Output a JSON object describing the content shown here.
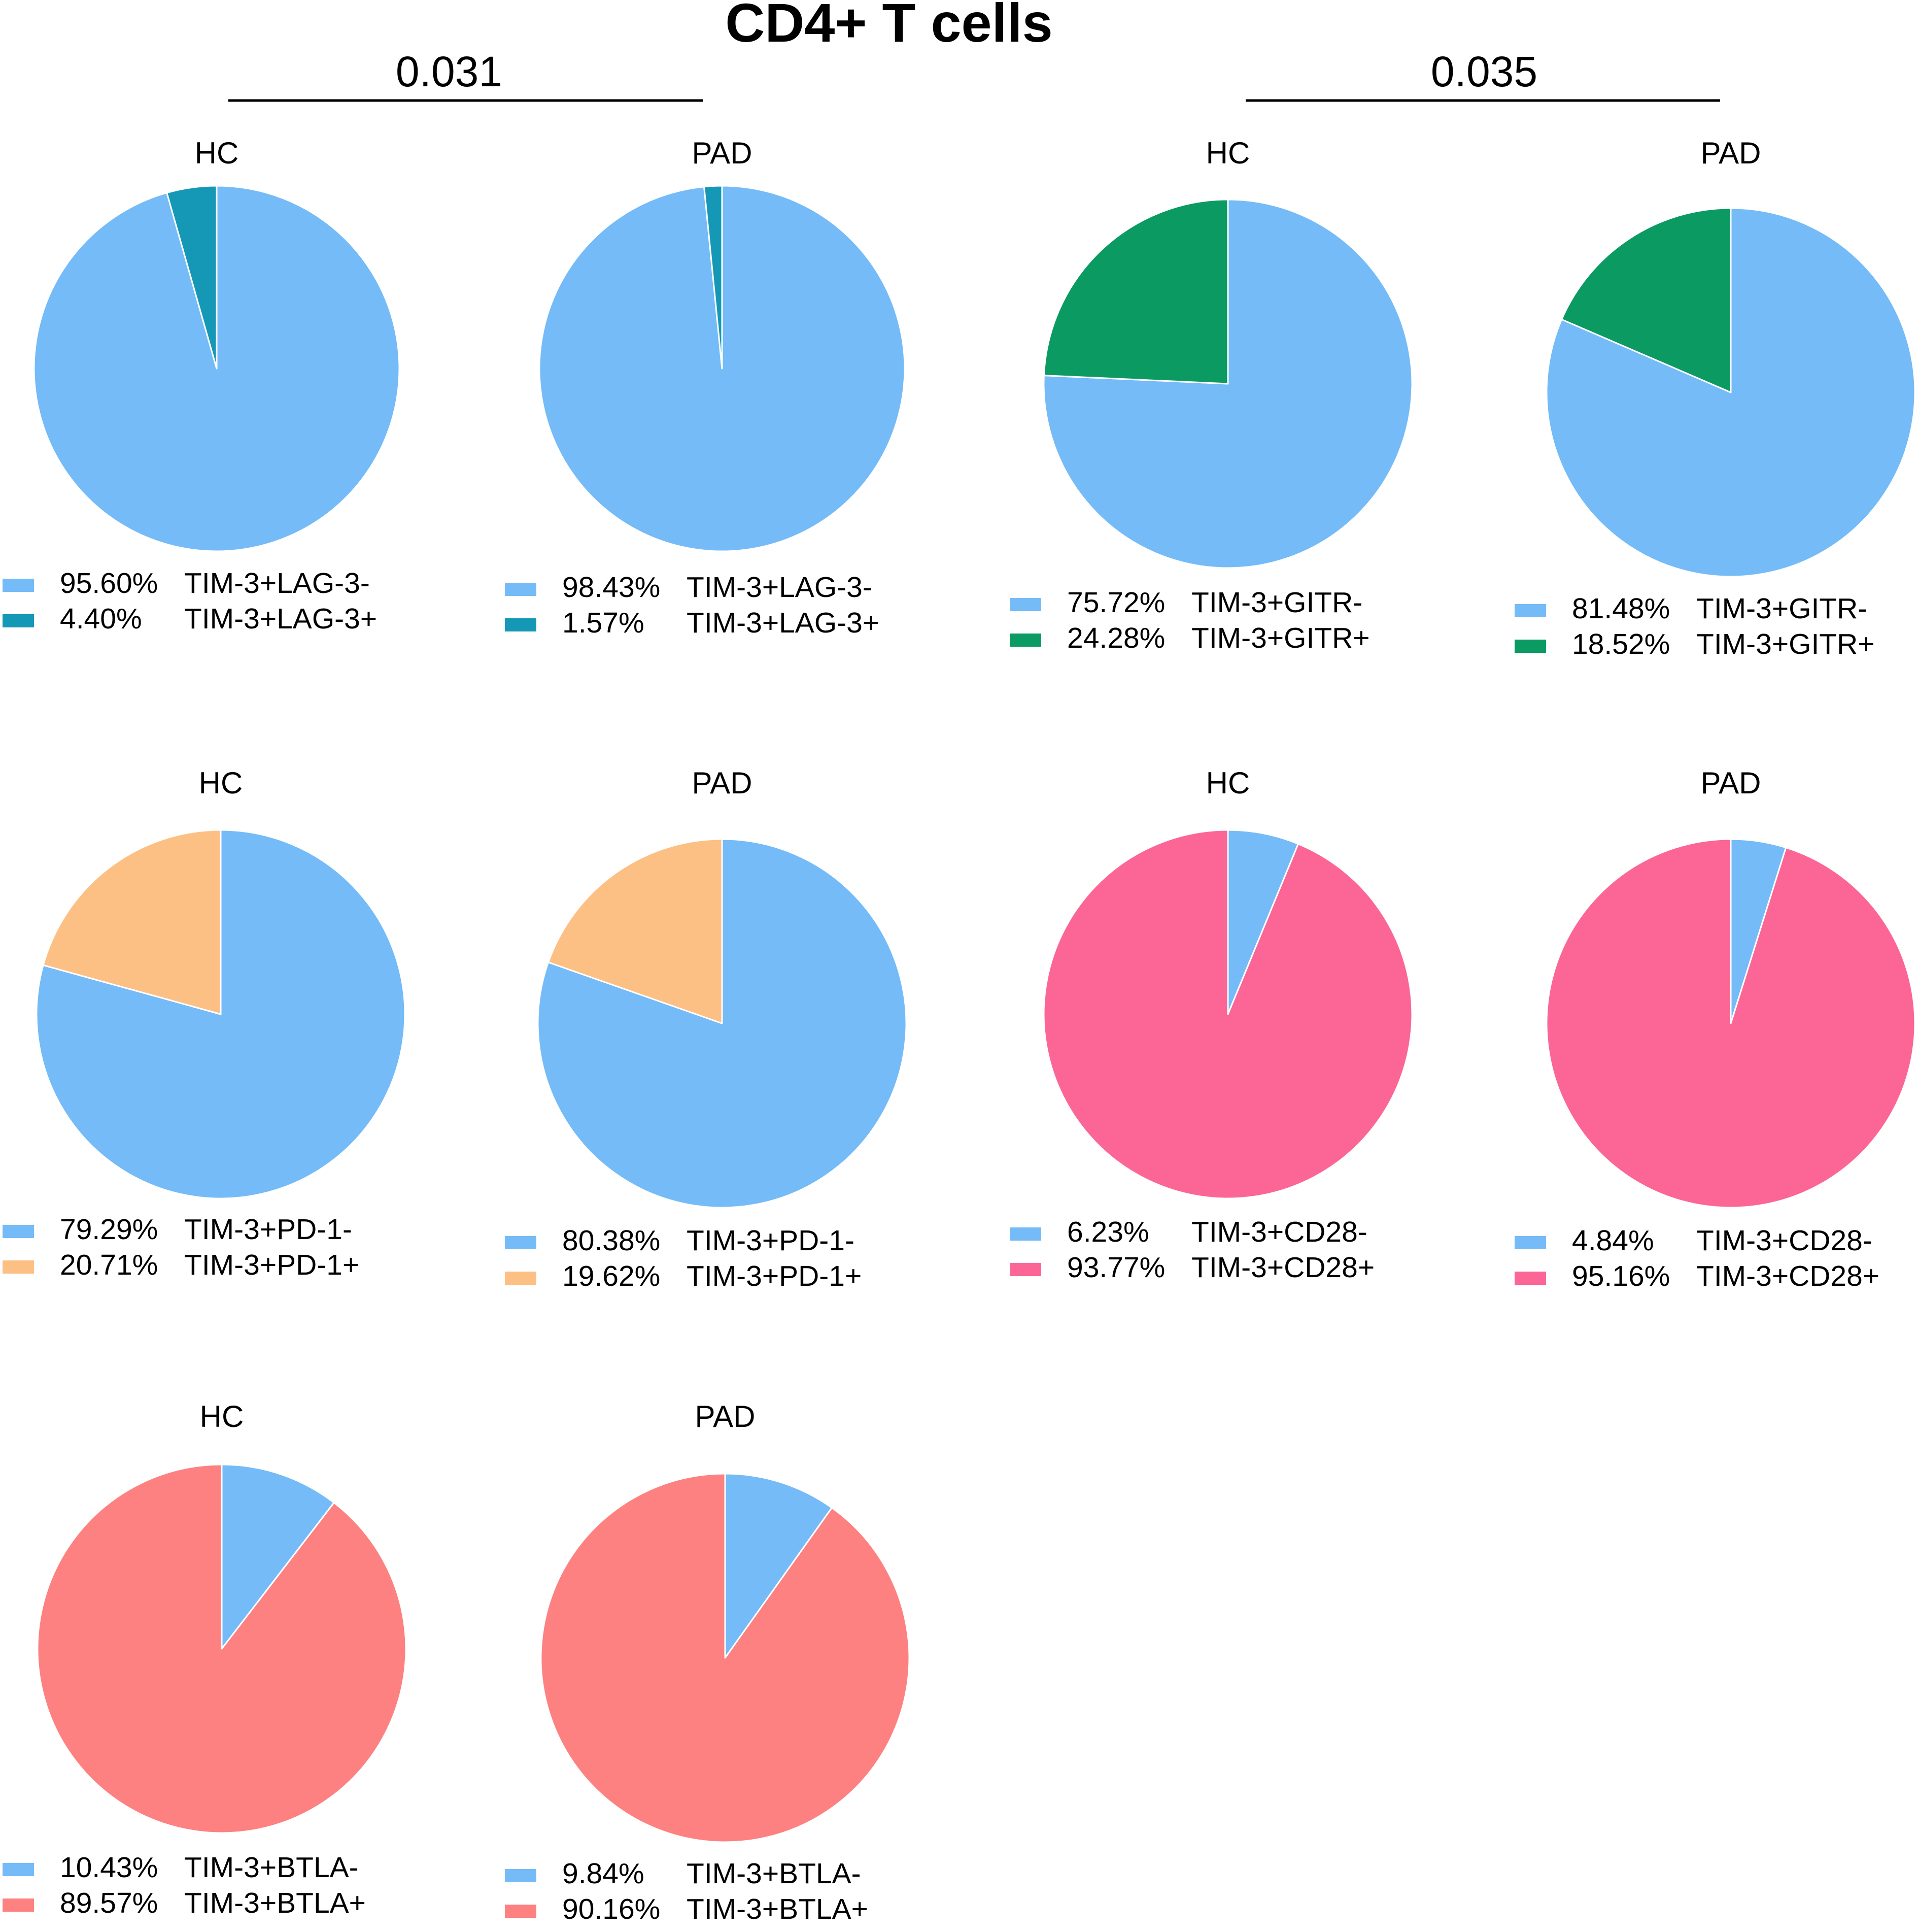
{
  "figure": {
    "title": "CD4+ T cells",
    "comparisons": [
      {
        "label": "0.031",
        "pair": "TIM-3+LAG-3"
      },
      {
        "label": "0.035",
        "pair": "TIM-3+GITR"
      }
    ]
  },
  "colors": {
    "negative": "#74BBF7",
    "lag3_pos": "#1598B5",
    "gitr_pos": "#0C9A63",
    "pd1_pos": "#FDC084",
    "cd28_pos": "#FB6696",
    "btla_pos": "#FD8181",
    "slice_border": "#FFFFFF"
  },
  "chart_data": [
    {
      "type": "pie",
      "title": "HC",
      "marker": "LAG-3",
      "slices": [
        {
          "pct": "95.60%",
          "label": "TIM-3+LAG-3-",
          "value": 95.6,
          "color": "#74BBF7"
        },
        {
          "pct": "4.40%",
          "label": "TIM-3+LAG-3+",
          "value": 4.4,
          "color": "#1598B5"
        }
      ]
    },
    {
      "type": "pie",
      "title": "PAD",
      "marker": "LAG-3",
      "slices": [
        {
          "pct": "98.43%",
          "label": "TIM-3+LAG-3-",
          "value": 98.43,
          "color": "#74BBF7"
        },
        {
          "pct": "1.57%",
          "label": "TIM-3+LAG-3+",
          "value": 1.57,
          "color": "#1598B5"
        }
      ]
    },
    {
      "type": "pie",
      "title": "HC",
      "marker": "GITR",
      "slices": [
        {
          "pct": "75.72%",
          "label": "TIM-3+GITR-",
          "value": 75.72,
          "color": "#74BBF7"
        },
        {
          "pct": "24.28%",
          "label": "TIM-3+GITR+",
          "value": 24.28,
          "color": "#0C9A63"
        }
      ]
    },
    {
      "type": "pie",
      "title": "PAD",
      "marker": "GITR",
      "slices": [
        {
          "pct": "81.48%",
          "label": "TIM-3+GITR-",
          "value": 81.48,
          "color": "#74BBF7"
        },
        {
          "pct": "18.52%",
          "label": "TIM-3+GITR+",
          "value": 18.52,
          "color": "#0C9A63"
        }
      ]
    },
    {
      "type": "pie",
      "title": "HC",
      "marker": "PD-1",
      "slices": [
        {
          "pct": "79.29%",
          "label": "TIM-3+PD-1-",
          "value": 79.29,
          "color": "#74BBF7"
        },
        {
          "pct": "20.71%",
          "label": "TIM-3+PD-1+",
          "value": 20.71,
          "color": "#FDC084"
        }
      ]
    },
    {
      "type": "pie",
      "title": "PAD",
      "marker": "PD-1",
      "slices": [
        {
          "pct": "80.38%",
          "label": "TIM-3+PD-1-",
          "value": 80.38,
          "color": "#74BBF7"
        },
        {
          "pct": "19.62%",
          "label": "TIM-3+PD-1+",
          "value": 19.62,
          "color": "#FDC084"
        }
      ]
    },
    {
      "type": "pie",
      "title": "HC",
      "marker": "CD28",
      "slices": [
        {
          "pct": "6.23%",
          "label": "TIM-3+CD28-",
          "value": 6.23,
          "color": "#74BBF7"
        },
        {
          "pct": "93.77%",
          "label": "TIM-3+CD28+",
          "value": 93.77,
          "color": "#FB6696"
        }
      ]
    },
    {
      "type": "pie",
      "title": "PAD",
      "marker": "CD28",
      "slices": [
        {
          "pct": "4.84%",
          "label": "TIM-3+CD28-",
          "value": 4.84,
          "color": "#74BBF7"
        },
        {
          "pct": "95.16%",
          "label": "TIM-3+CD28+",
          "value": 95.16,
          "color": "#FB6696"
        }
      ]
    },
    {
      "type": "pie",
      "title": "HC",
      "marker": "BTLA",
      "slices": [
        {
          "pct": "10.43%",
          "label": "TIM-3+BTLA-",
          "value": 10.43,
          "color": "#74BBF7"
        },
        {
          "pct": "89.57%",
          "label": "TIM-3+BTLA+",
          "value": 89.57,
          "color": "#FD8181"
        }
      ]
    },
    {
      "type": "pie",
      "title": "PAD",
      "marker": "BTLA",
      "slices": [
        {
          "pct": "9.84%",
          "label": "TIM-3+BTLA-",
          "value": 9.84,
          "color": "#74BBF7"
        },
        {
          "pct": "90.16%",
          "label": "TIM-3+BTLA+",
          "value": 90.16,
          "color": "#FD8181"
        }
      ]
    }
  ]
}
